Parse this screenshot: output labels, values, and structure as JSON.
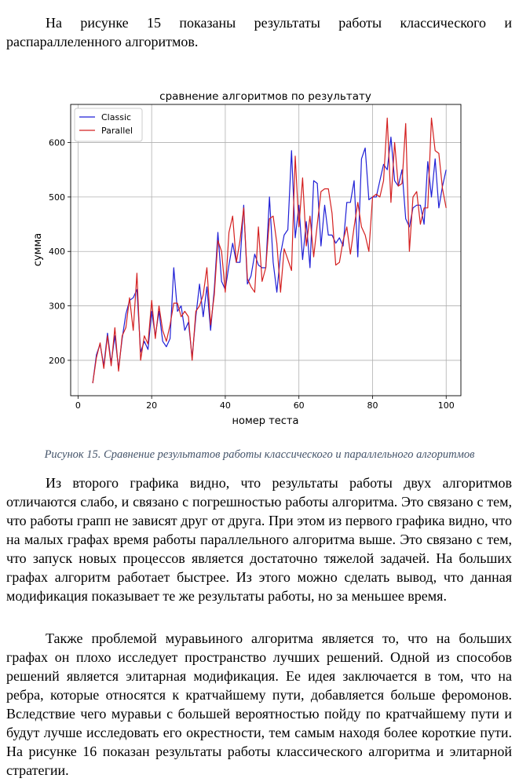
{
  "text": {
    "para1": "На рисунке 15 показаны результаты работы классического и распараллеленного алгоритмов.",
    "caption": "Рисунок 15. Сравнение результатов работы классического и параллельного алгоритмов",
    "para2": "Из второго графика видно, что результаты работы двух алгоритмов отличаются слабо, и связано с погрешностью работы алгоритма. Это связано с тем, что работы грапп не зависят друг от друга. При этом из первого графика видно, что на малых графах время работы параллельного алгоритма выше. Это связано с тем, что запуск новых процессов является достаточно тяжелой задачей. На больших графах алгоритм работает быстрее. Из этого можно сделать вывод, что данная модификация показывает те же результаты работы, но за меньшее время.",
    "para3": "Также проблемой муравьиного алгоритма является то, что на больших графах он плохо исследует пространство лучших решений. Одной из способов решений является элитарная модификация. Ее идея заключается в том, что на ребра, которые относятся к кратчайшему пути, добавляется больше феромонов. Вследствие чего муравьи с большей вероятностью пойду по кратчайшему пути и будут лучше исследовать его окрестности, тем самым находя более короткие пути. На рисунке 16 показан результаты работы классического алгоритма и элитарной стратегии."
  },
  "chart_data": {
    "type": "line",
    "title": "сравнение алгоритмов по результату",
    "xlabel": "номер теста",
    "ylabel": "сумма",
    "xlim": [
      -2,
      104
    ],
    "ylim": [
      135,
      670
    ],
    "xticks": [
      0,
      20,
      40,
      60,
      80,
      100
    ],
    "yticks": [
      200,
      300,
      400,
      500,
      600
    ],
    "grid": true,
    "legend": "top-left",
    "x": [
      4,
      5,
      6,
      7,
      8,
      9,
      10,
      11,
      12,
      13,
      14,
      15,
      16,
      17,
      18,
      19,
      20,
      21,
      22,
      23,
      24,
      25,
      26,
      27,
      28,
      29,
      30,
      31,
      32,
      33,
      34,
      35,
      36,
      37,
      38,
      39,
      40,
      41,
      42,
      43,
      44,
      45,
      46,
      47,
      48,
      49,
      50,
      51,
      52,
      53,
      54,
      55,
      56,
      57,
      58,
      59,
      60,
      61,
      62,
      63,
      64,
      65,
      66,
      67,
      68,
      69,
      70,
      71,
      72,
      73,
      74,
      75,
      76,
      77,
      78,
      79,
      80,
      81,
      82,
      83,
      84,
      85,
      86,
      87,
      88,
      89,
      90,
      91,
      92,
      93,
      94,
      95,
      96,
      97,
      98,
      99,
      100
    ],
    "series": [
      {
        "name": "Classic",
        "color": "#1f1fd6",
        "values": [
          158,
          210,
          230,
          190,
          250,
          195,
          245,
          185,
          240,
          285,
          310,
          315,
          330,
          215,
          235,
          220,
          290,
          245,
          290,
          235,
          225,
          240,
          370,
          290,
          300,
          255,
          270,
          205,
          280,
          340,
          280,
          335,
          255,
          330,
          435,
          345,
          330,
          375,
          415,
          380,
          380,
          485,
          340,
          355,
          395,
          375,
          370,
          370,
          500,
          380,
          325,
          395,
          430,
          440,
          585,
          425,
          485,
          385,
          455,
          370,
          530,
          525,
          410,
          485,
          430,
          430,
          415,
          425,
          410,
          490,
          490,
          530,
          390,
          570,
          590,
          495,
          500,
          500,
          530,
          560,
          550,
          610,
          530,
          520,
          550,
          460,
          445,
          480,
          485,
          485,
          450,
          565,
          500,
          570,
          480,
          520,
          550
        ]
      },
      {
        "name": "Parallel",
        "color": "#d42020",
        "values": [
          158,
          205,
          232,
          185,
          245,
          190,
          260,
          180,
          245,
          260,
          315,
          255,
          360,
          200,
          245,
          230,
          310,
          240,
          300,
          255,
          235,
          265,
          305,
          305,
          280,
          290,
          280,
          200,
          290,
          300,
          320,
          370,
          265,
          320,
          420,
          400,
          325,
          435,
          465,
          380,
          420,
          480,
          350,
          335,
          325,
          445,
          345,
          370,
          460,
          465,
          415,
          325,
          405,
          385,
          365,
          575,
          445,
          535,
          410,
          465,
          390,
          450,
          510,
          515,
          515,
          470,
          375,
          380,
          420,
          445,
          395,
          445,
          490,
          445,
          430,
          400,
          500,
          505,
          500,
          530,
          645,
          490,
          600,
          520,
          525,
          635,
          400,
          500,
          510,
          450,
          480,
          480,
          645,
          585,
          580,
          515,
          480
        ]
      }
    ]
  }
}
